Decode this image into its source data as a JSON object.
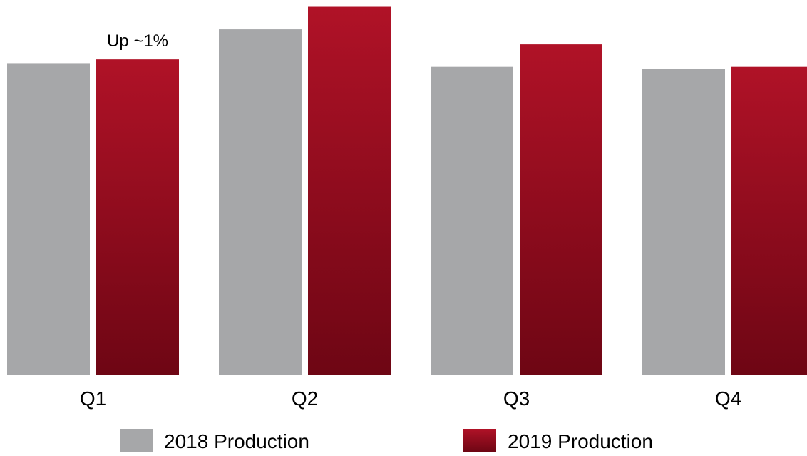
{
  "chart_data": {
    "type": "bar",
    "title": "",
    "xlabel": "",
    "ylabel": "",
    "ylim": [
      0,
      100
    ],
    "grid": false,
    "legend_position": "bottom",
    "categories": [
      "Q1",
      "Q2",
      "Q3",
      "Q4"
    ],
    "series": [
      {
        "name": "2018 Production",
        "color": "#a6a7a9",
        "values": [
          83,
          92,
          82,
          81.5
        ]
      },
      {
        "name": "2019 Production",
        "color": "#b01227",
        "color_dark": "#6e0614",
        "values": [
          84,
          98,
          88,
          82
        ]
      }
    ],
    "annotations": [
      {
        "text": "Up ~1%",
        "category": "Q1",
        "series": 1
      }
    ]
  }
}
